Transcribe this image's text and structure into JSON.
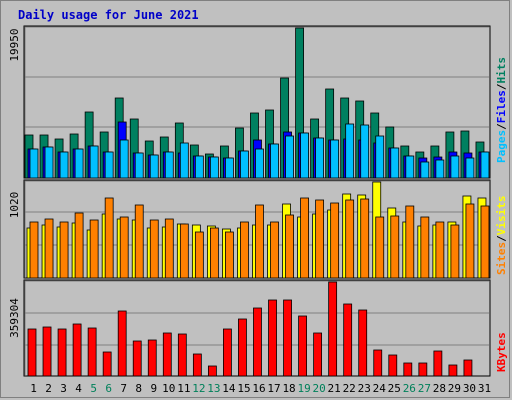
{
  "title": "Daily usage for June 2021",
  "days": [
    "1",
    "2",
    "3",
    "4",
    "5",
    "6",
    "7",
    "8",
    "9",
    "10",
    "11",
    "12",
    "13",
    "14",
    "15",
    "16",
    "17",
    "18",
    "19",
    "20",
    "21",
    "22",
    "23",
    "24",
    "25",
    "26",
    "27",
    "28",
    "29",
    "30",
    "31"
  ],
  "weekend_days": [
    5,
    6,
    12,
    13,
    19,
    20,
    26,
    27
  ],
  "colors": {
    "background": "#c0c0c0",
    "plot_bg": "#c0c0c0",
    "gridline": "#808080",
    "pages": "#00c0ff",
    "files": "#0000ff",
    "hits": "#008060",
    "visits": "#ffff00",
    "sites": "#ff8000",
    "kbytes": "#ff0000",
    "title": "#0000c8",
    "weekday_label": "#000000",
    "weekend_label": "#00805a"
  },
  "chart_data": [
    {
      "type": "bar",
      "name": "hits-files-pages",
      "max_label": "19950",
      "ylim": [
        0,
        19950
      ],
      "legend": [
        {
          "label": "Pages",
          "color": "#00c0ff"
        },
        {
          "label": "Files",
          "color": "#0000ff"
        },
        {
          "label": "Hits",
          "color": "#008060"
        }
      ],
      "legend_separator": "/",
      "series": [
        {
          "name": "Hits",
          "values": [
            5700,
            5700,
            5200,
            5900,
            8800,
            6100,
            10700,
            7800,
            4900,
            5500,
            7300,
            4400,
            3200,
            4300,
            6600,
            8600,
            9000,
            13300,
            19950,
            7900,
            11900,
            10700,
            10200,
            8600,
            6800,
            4200,
            3500,
            4200,
            6100,
            6300,
            4800
          ]
        },
        {
          "name": "Files",
          "values": [
            3900,
            4100,
            3500,
            3800,
            4200,
            3400,
            7400,
            3300,
            3100,
            3400,
            3300,
            2900,
            2800,
            2700,
            3600,
            5000,
            4500,
            6100,
            6000,
            5300,
            5000,
            5200,
            5000,
            4700,
            4000,
            2900,
            2600,
            2800,
            3400,
            3300,
            3400
          ]
        },
        {
          "name": "Pages",
          "values": [
            3900,
            4100,
            3500,
            3800,
            4200,
            3400,
            5100,
            3300,
            3100,
            3400,
            4600,
            2900,
            2800,
            2700,
            3600,
            3800,
            4500,
            5600,
            6000,
            5300,
            5000,
            7200,
            7000,
            5600,
            4000,
            2900,
            2100,
            2400,
            2900,
            2600,
            3400
          ]
        }
      ]
    },
    {
      "type": "bar",
      "name": "visits-sites",
      "max_label": "1020",
      "ylim": [
        0,
        1020
      ],
      "legend": [
        {
          "label": "Sites",
          "color": "#ff8000"
        },
        {
          "label": "Visits",
          "color": "#ffff00"
        }
      ],
      "legend_separator": "/",
      "series": [
        {
          "name": "Visits",
          "values": [
            530,
            560,
            540,
            580,
            510,
            680,
            630,
            620,
            530,
            540,
            570,
            560,
            550,
            520,
            530,
            560,
            560,
            790,
            650,
            680,
            720,
            890,
            880,
            1020,
            740,
            600,
            550,
            560,
            600,
            870,
            850
          ]
        },
        {
          "name": "Sites",
          "values": [
            600,
            630,
            600,
            690,
            620,
            850,
            650,
            780,
            620,
            630,
            570,
            490,
            530,
            490,
            590,
            780,
            590,
            670,
            850,
            830,
            800,
            830,
            840,
            650,
            660,
            770,
            650,
            600,
            560,
            790,
            770
          ]
        }
      ]
    },
    {
      "type": "bar",
      "name": "kbytes",
      "max_label": "359304",
      "ylim": [
        0,
        359304
      ],
      "legend": [
        {
          "label": "KBytes",
          "color": "#ff0000"
        }
      ],
      "series": [
        {
          "name": "KBytes",
          "values": [
            181000,
            188000,
            178000,
            197000,
            184000,
            93000,
            248000,
            135000,
            139000,
            165000,
            160000,
            83000,
            39000,
            181000,
            216000,
            261000,
            292000,
            289000,
            230000,
            163000,
            359304,
            275000,
            253000,
            98000,
            82000,
            49000,
            48000,
            96000,
            41000,
            62000,
            0
          ]
        }
      ]
    }
  ]
}
